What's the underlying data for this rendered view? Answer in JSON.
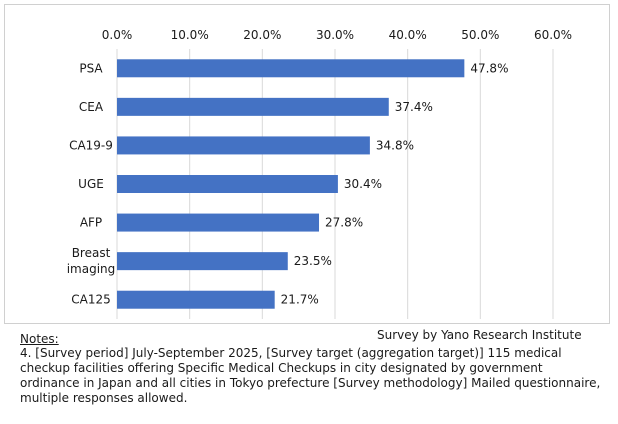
{
  "chart_data": {
    "type": "bar",
    "orientation": "horizontal",
    "categories": [
      "PSA",
      "CEA",
      "CA19-9",
      "UGE",
      "AFP",
      "Breast imaging",
      "CA125"
    ],
    "category_lines": [
      [
        "PSA"
      ],
      [
        "CEA"
      ],
      [
        "CA19-9"
      ],
      [
        "UGE"
      ],
      [
        "AFP"
      ],
      [
        "Breast",
        "imaging"
      ],
      [
        "CA125"
      ]
    ],
    "values": [
      47.8,
      37.4,
      34.8,
      30.4,
      27.8,
      23.5,
      21.7
    ],
    "value_labels": [
      "47.8%",
      "37.4%",
      "34.8%",
      "30.4%",
      "27.8%",
      "23.5%",
      "21.7%"
    ],
    "xlim": [
      0,
      60
    ],
    "ticks": [
      0,
      10,
      20,
      30,
      40,
      50,
      60
    ],
    "tick_labels": [
      "0.0%",
      "10.0%",
      "20.0%",
      "30.0%",
      "40.0%",
      "50.0%",
      "60.0%"
    ],
    "axis_position": "top",
    "grid": true,
    "bar_color": "#4472c4",
    "title": "",
    "xlabel": "",
    "ylabel": ""
  },
  "source": "Survey by Yano Research Institute",
  "notes": {
    "title": "Notes:",
    "body": "4.  [Survey period] July-September 2025, [Survey target (aggregation target)] 115 medical checkup facilities offering Specific Medical Checkups in city designated by government ordinance in Japan and all cities in Tokyo prefecture [Survey methodology] Mailed questionnaire, multiple responses allowed."
  }
}
